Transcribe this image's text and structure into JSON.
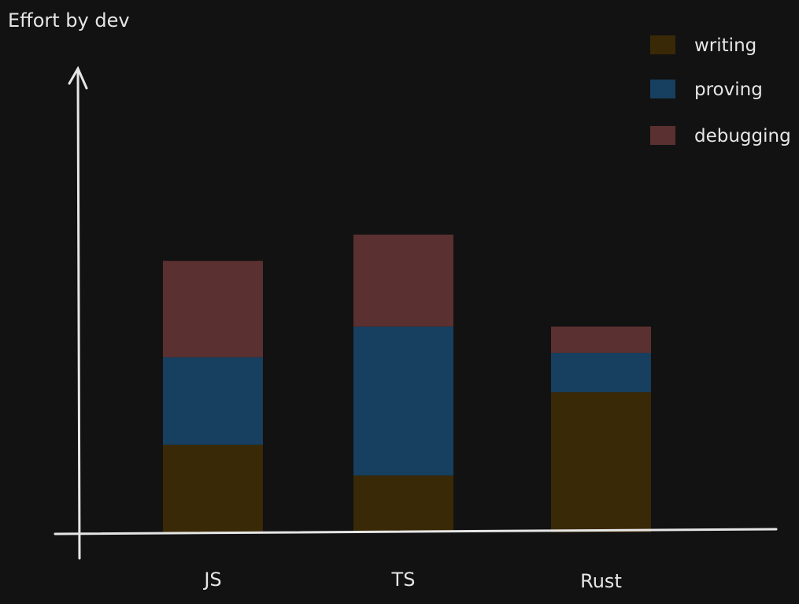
{
  "chart_data": {
    "type": "bar",
    "stacked": true,
    "title": "Effort by dev",
    "xlabel": "",
    "ylabel": "",
    "categories": [
      "JS",
      "TS",
      "Rust"
    ],
    "ylim": [
      0,
      100
    ],
    "series": [
      {
        "name": "writing",
        "color": "#3a2906",
        "values": [
          20,
          13,
          32
        ]
      },
      {
        "name": "proving",
        "color": "#173f5f",
        "values": [
          20,
          34,
          9
        ]
      },
      {
        "name": "debugging",
        "color": "#5b3030",
        "values": [
          22,
          21,
          6
        ]
      }
    ],
    "legend": "top-right",
    "grid": false
  }
}
